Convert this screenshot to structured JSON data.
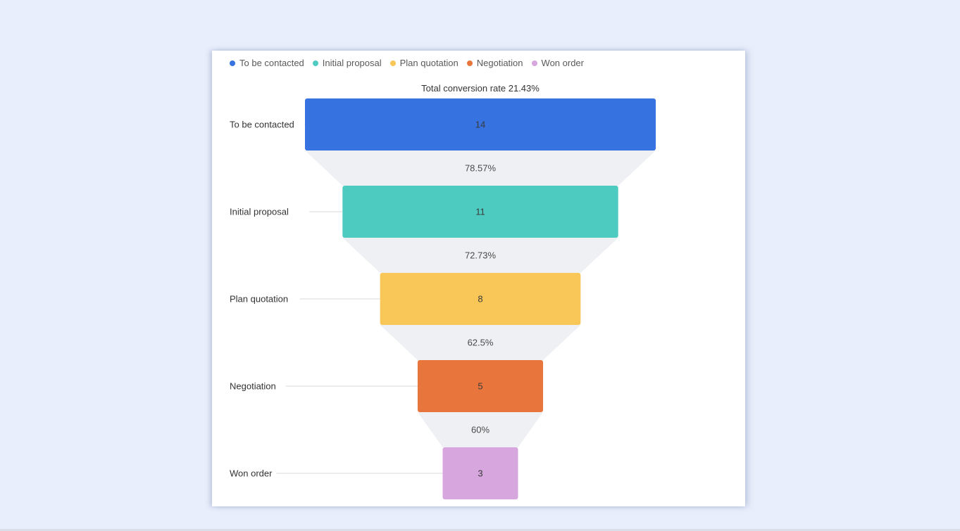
{
  "chart_data": {
    "type": "funnel",
    "title": "Total conversion rate 21.43%",
    "legend_position": "top-left",
    "stages": [
      {
        "name": "To be contacted",
        "value": 14,
        "color": "#3672e0"
      },
      {
        "name": "Initial proposal",
        "value": 11,
        "color": "#4ecbc0"
      },
      {
        "name": "Plan quotation",
        "value": 8,
        "color": "#f9c758"
      },
      {
        "name": "Negotiation",
        "value": 5,
        "color": "#e8763c"
      },
      {
        "name": "Won order",
        "value": 3,
        "color": "#d7a6df"
      }
    ],
    "conversion_rates": [
      "78.57%",
      "72.73%",
      "62.5%",
      "60%"
    ],
    "connector_color": "#eef0f3",
    "leader_line_color": "#d9d9d9"
  }
}
